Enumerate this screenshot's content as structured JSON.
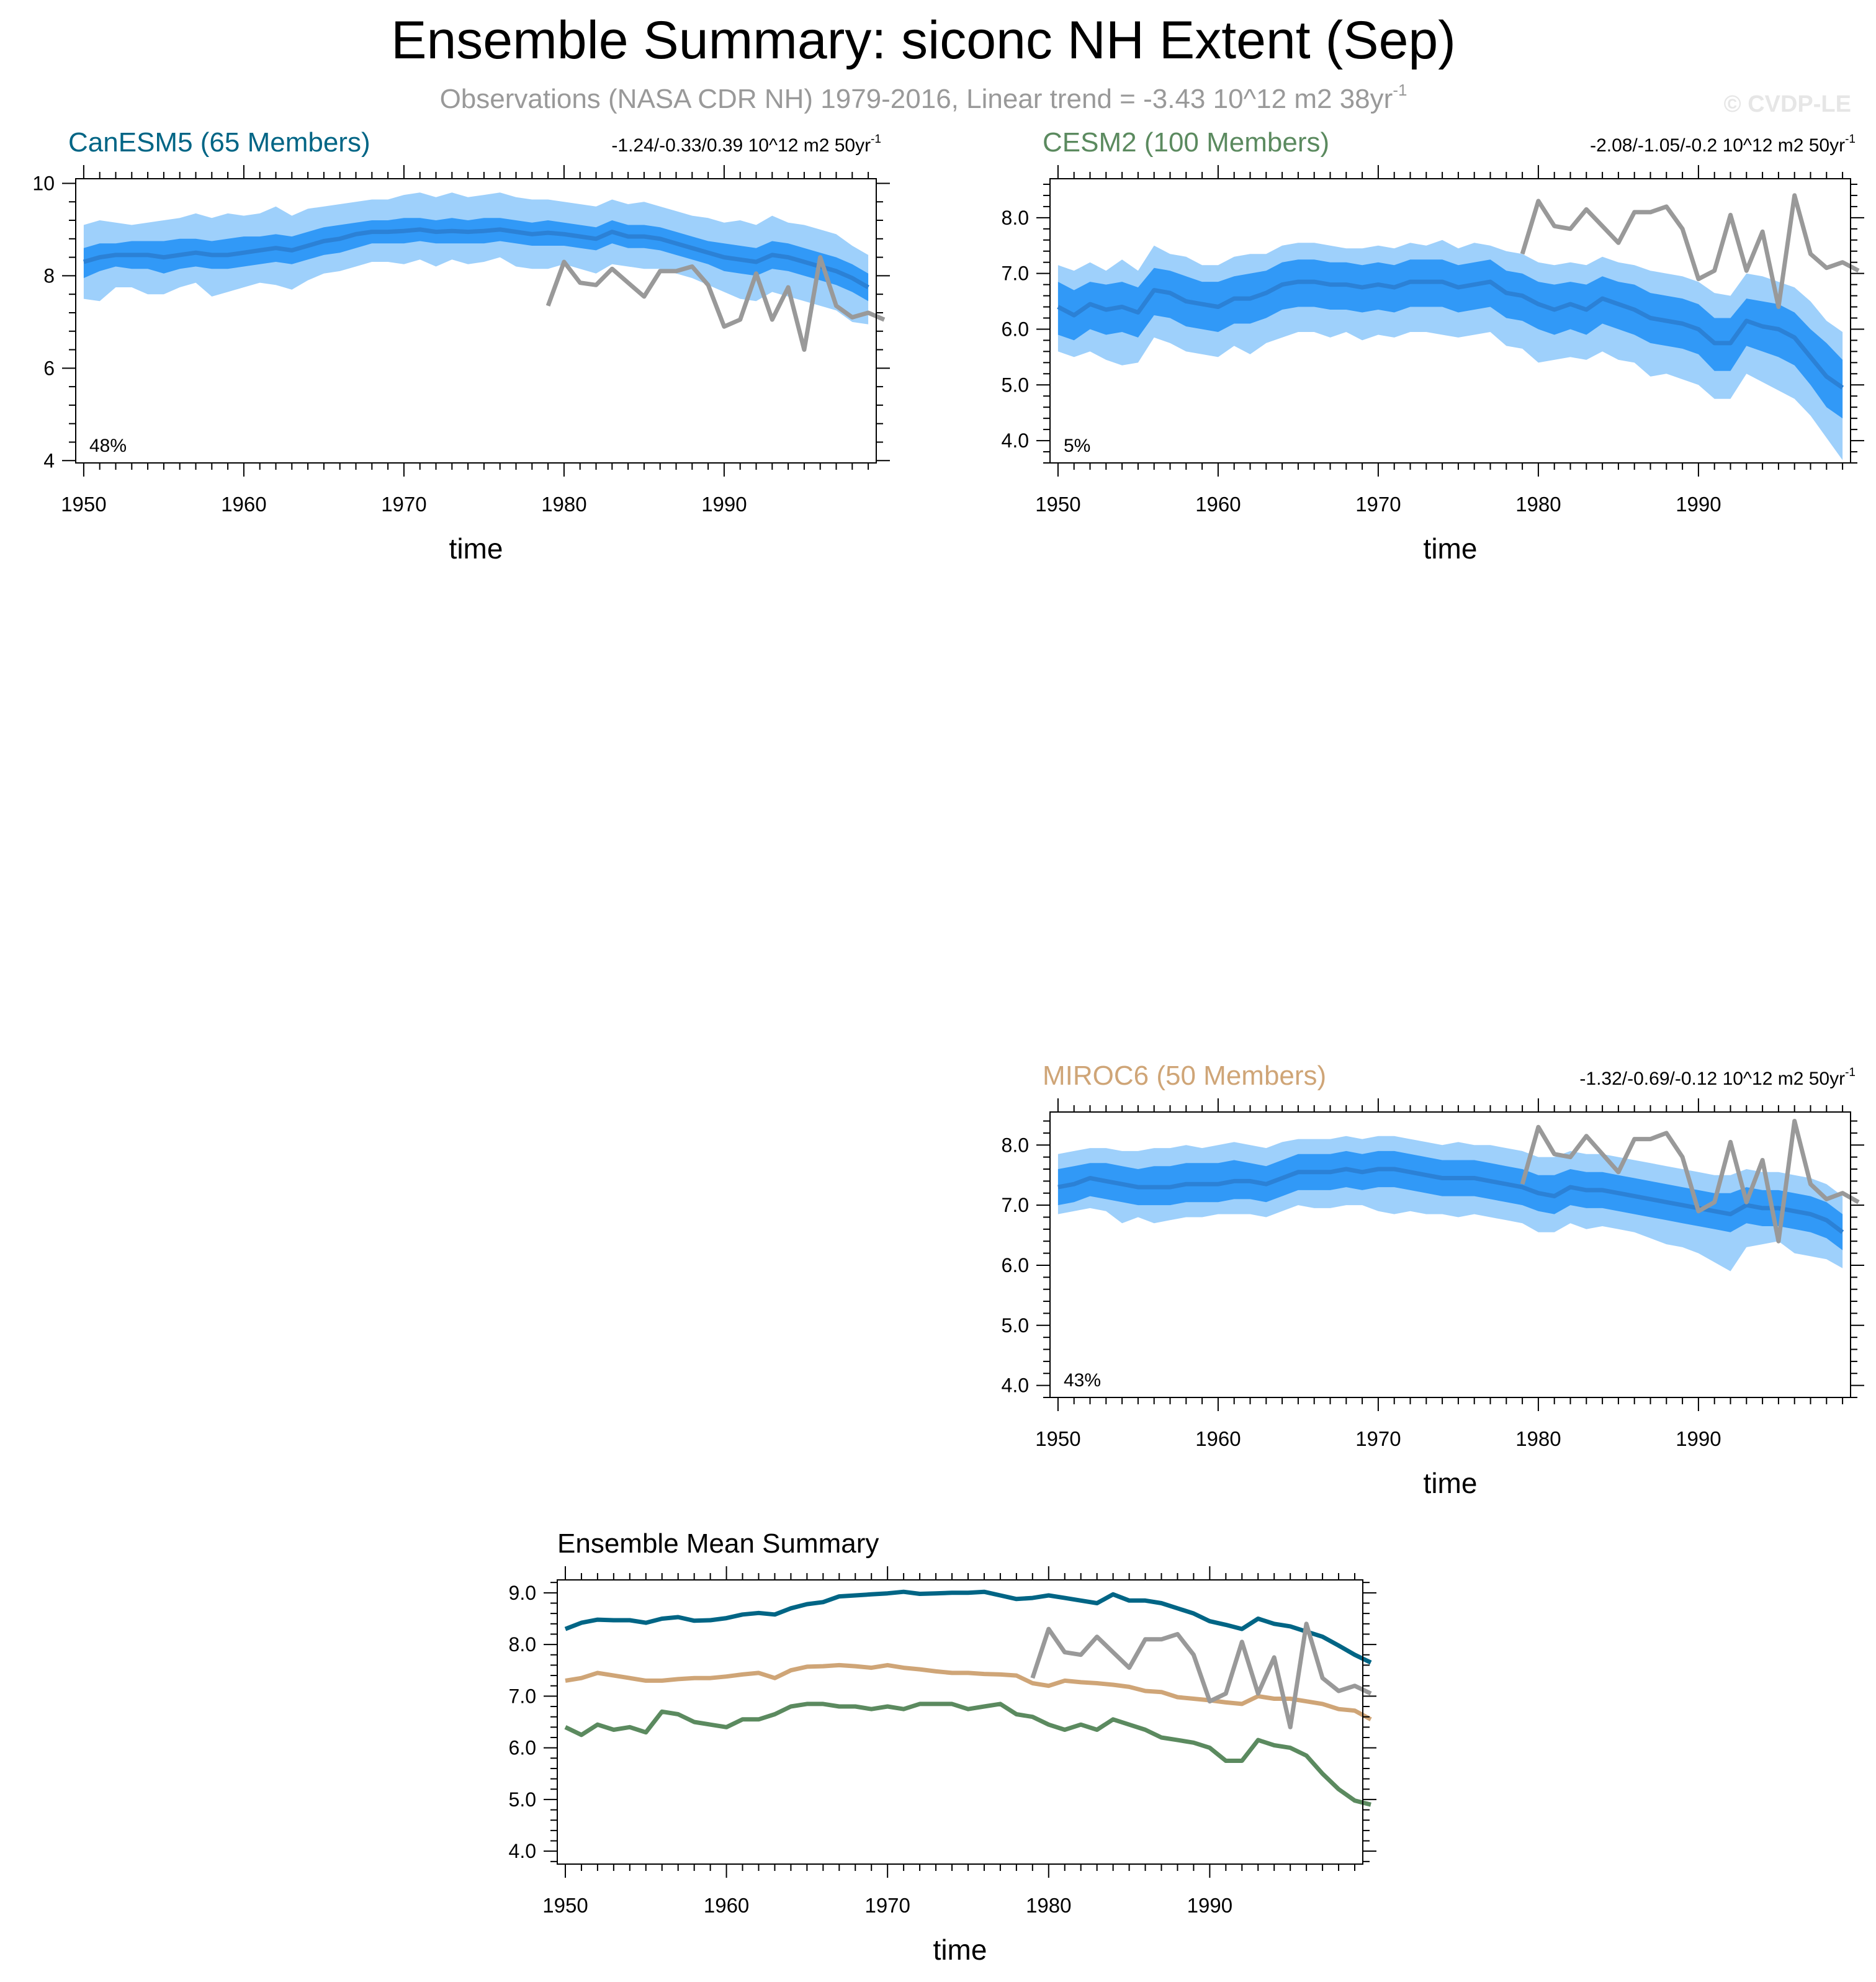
{
  "header": {
    "title": "Ensemble Summary: siconc NH Extent (Sep)",
    "subtitle": "Observations (NASA CDR NH) 1979-2016, Linear trend = -3.43 10^12 m2 38yr",
    "subtitle_sup": "-1",
    "watermark": "© CVDP-LE"
  },
  "colors": {
    "canesm5": "#006585",
    "cesm2": "#5b8a5f",
    "miroc6": "#cfa577",
    "band_outer": "#9ed0fb",
    "band_inner": "#3199f7",
    "mean_line": "#2b81d6",
    "obs": "#999999"
  },
  "chart_data": [
    {
      "id": "canesm5",
      "type": "area",
      "title": "CanESM5 (65 Members)",
      "trend_text": "-1.24/-0.33/0.39 10^12 m2 50yr",
      "trend_sup": "-1",
      "percent_label": "48%",
      "xlabel": "time",
      "xlim": [
        1949.5,
        1999.5
      ],
      "ylim": [
        3.95,
        10.1
      ],
      "xticks": [
        1950,
        1960,
        1970,
        1980,
        1990
      ],
      "yticks": [
        "4",
        "6",
        "8",
        "10"
      ],
      "x_start": 1950,
      "mean": [
        8.3,
        8.4,
        8.45,
        8.45,
        8.45,
        8.4,
        8.45,
        8.5,
        8.45,
        8.45,
        8.5,
        8.55,
        8.6,
        8.55,
        8.65,
        8.75,
        8.8,
        8.9,
        8.95,
        8.95,
        8.97,
        9.0,
        8.95,
        8.97,
        8.95,
        8.97,
        9.0,
        8.95,
        8.9,
        8.93,
        8.9,
        8.85,
        8.8,
        8.95,
        8.85,
        8.85,
        8.8,
        8.7,
        8.6,
        8.5,
        8.4,
        8.35,
        8.3,
        8.45,
        8.4,
        8.3,
        8.2,
        8.1,
        7.95,
        7.75
      ],
      "inner_upper": [
        8.6,
        8.7,
        8.7,
        8.75,
        8.75,
        8.75,
        8.8,
        8.8,
        8.75,
        8.8,
        8.85,
        8.85,
        8.9,
        8.85,
        8.95,
        9.05,
        9.1,
        9.15,
        9.2,
        9.2,
        9.25,
        9.25,
        9.2,
        9.25,
        9.2,
        9.25,
        9.25,
        9.2,
        9.15,
        9.2,
        9.15,
        9.1,
        9.05,
        9.2,
        9.1,
        9.1,
        9.05,
        8.95,
        8.85,
        8.75,
        8.7,
        8.65,
        8.6,
        8.75,
        8.7,
        8.6,
        8.5,
        8.4,
        8.25,
        8.05
      ],
      "inner_lower": [
        7.95,
        8.1,
        8.2,
        8.15,
        8.15,
        8.05,
        8.15,
        8.2,
        8.15,
        8.15,
        8.2,
        8.25,
        8.3,
        8.25,
        8.35,
        8.45,
        8.5,
        8.6,
        8.7,
        8.7,
        8.7,
        8.75,
        8.7,
        8.7,
        8.7,
        8.7,
        8.75,
        8.7,
        8.65,
        8.65,
        8.65,
        8.6,
        8.55,
        8.7,
        8.6,
        8.6,
        8.55,
        8.45,
        8.35,
        8.25,
        8.1,
        8.05,
        8.0,
        8.15,
        8.1,
        8.0,
        7.9,
        7.8,
        7.65,
        7.45
      ],
      "outer_upper": [
        9.1,
        9.2,
        9.15,
        9.1,
        9.15,
        9.2,
        9.25,
        9.35,
        9.25,
        9.35,
        9.3,
        9.35,
        9.5,
        9.3,
        9.45,
        9.5,
        9.55,
        9.6,
        9.65,
        9.65,
        9.75,
        9.8,
        9.7,
        9.8,
        9.7,
        9.75,
        9.8,
        9.7,
        9.65,
        9.65,
        9.6,
        9.55,
        9.5,
        9.65,
        9.55,
        9.6,
        9.5,
        9.4,
        9.3,
        9.25,
        9.15,
        9.2,
        9.1,
        9.3,
        9.15,
        9.1,
        9.0,
        8.9,
        8.65,
        8.45
      ],
      "outer_lower": [
        7.5,
        7.45,
        7.75,
        7.75,
        7.6,
        7.6,
        7.75,
        7.85,
        7.55,
        7.65,
        7.75,
        7.85,
        7.8,
        7.7,
        7.9,
        8.05,
        8.1,
        8.2,
        8.3,
        8.3,
        8.25,
        8.35,
        8.2,
        8.35,
        8.25,
        8.3,
        8.4,
        8.2,
        8.15,
        8.15,
        8.25,
        8.15,
        8.05,
        8.25,
        8.2,
        8.15,
        8.15,
        8.05,
        7.95,
        7.8,
        7.65,
        7.5,
        7.45,
        7.65,
        7.55,
        7.45,
        7.35,
        7.25,
        7.0,
        6.95
      ],
      "obs": {
        "x_start": 1979,
        "values": [
          7.35,
          8.3,
          7.85,
          7.8,
          8.15,
          7.85,
          7.55,
          8.1,
          8.1,
          8.2,
          7.8,
          6.9,
          7.05,
          8.05,
          7.05,
          7.75,
          6.4,
          8.4,
          7.35,
          7.1,
          7.2,
          7.05
        ]
      }
    },
    {
      "id": "cesm2",
      "type": "area",
      "title": "CESM2 (100 Members)",
      "trend_text": "-2.08/-1.05/-0.2 10^12 m2 50yr",
      "trend_sup": "-1",
      "percent_label": "5%",
      "xlabel": "time",
      "xlim": [
        1949.5,
        1999.5
      ],
      "ylim": [
        3.6,
        8.7
      ],
      "xticks": [
        1950,
        1960,
        1970,
        1980,
        1990
      ],
      "yticks": [
        "4.0",
        "5.0",
        "6.0",
        "7.0",
        "8.0"
      ],
      "x_start": 1950,
      "mean": [
        6.4,
        6.25,
        6.45,
        6.35,
        6.4,
        6.3,
        6.7,
        6.65,
        6.5,
        6.45,
        6.4,
        6.55,
        6.55,
        6.65,
        6.8,
        6.85,
        6.85,
        6.8,
        6.8,
        6.75,
        6.8,
        6.75,
        6.85,
        6.85,
        6.85,
        6.75,
        6.8,
        6.85,
        6.65,
        6.6,
        6.45,
        6.35,
        6.45,
        6.35,
        6.55,
        6.45,
        6.35,
        6.2,
        6.15,
        6.1,
        6.0,
        5.75,
        5.75,
        6.15,
        6.05,
        6.0,
        5.85,
        5.5,
        5.15,
        4.95
      ],
      "inner_upper": [
        6.85,
        6.7,
        6.85,
        6.8,
        6.85,
        6.75,
        7.1,
        7.05,
        6.95,
        6.85,
        6.85,
        6.95,
        7.0,
        7.05,
        7.2,
        7.25,
        7.25,
        7.2,
        7.2,
        7.15,
        7.2,
        7.15,
        7.25,
        7.25,
        7.25,
        7.15,
        7.2,
        7.25,
        7.05,
        7.0,
        6.85,
        6.8,
        6.85,
        6.8,
        6.95,
        6.85,
        6.8,
        6.65,
        6.6,
        6.55,
        6.45,
        6.2,
        6.2,
        6.55,
        6.5,
        6.45,
        6.3,
        6.0,
        5.75,
        5.45
      ],
      "inner_lower": [
        5.9,
        5.8,
        6.0,
        5.9,
        5.95,
        5.85,
        6.25,
        6.2,
        6.05,
        6.0,
        5.95,
        6.1,
        6.1,
        6.2,
        6.35,
        6.4,
        6.4,
        6.35,
        6.35,
        6.3,
        6.35,
        6.3,
        6.4,
        6.4,
        6.4,
        6.3,
        6.35,
        6.4,
        6.2,
        6.15,
        6.0,
        5.9,
        6.0,
        5.9,
        6.1,
        6.0,
        5.9,
        5.75,
        5.7,
        5.65,
        5.55,
        5.25,
        5.25,
        5.7,
        5.6,
        5.5,
        5.35,
        5.0,
        4.6,
        4.4
      ],
      "outer_upper": [
        7.15,
        7.05,
        7.2,
        7.05,
        7.25,
        7.05,
        7.5,
        7.35,
        7.3,
        7.15,
        7.15,
        7.3,
        7.35,
        7.35,
        7.5,
        7.55,
        7.55,
        7.5,
        7.45,
        7.45,
        7.5,
        7.45,
        7.55,
        7.5,
        7.6,
        7.45,
        7.55,
        7.5,
        7.4,
        7.35,
        7.2,
        7.15,
        7.2,
        7.15,
        7.3,
        7.2,
        7.15,
        7.05,
        7.0,
        6.95,
        6.85,
        6.65,
        6.6,
        7.0,
        6.95,
        6.85,
        6.75,
        6.5,
        6.15,
        5.95
      ],
      "outer_lower": [
        5.6,
        5.5,
        5.6,
        5.45,
        5.35,
        5.4,
        5.85,
        5.75,
        5.6,
        5.55,
        5.5,
        5.7,
        5.55,
        5.75,
        5.85,
        5.95,
        5.95,
        5.85,
        5.95,
        5.8,
        5.9,
        5.85,
        5.95,
        5.95,
        5.9,
        5.85,
        5.9,
        5.95,
        5.7,
        5.65,
        5.4,
        5.45,
        5.5,
        5.45,
        5.6,
        5.45,
        5.4,
        5.15,
        5.2,
        5.1,
        5.0,
        4.75,
        4.75,
        5.2,
        5.05,
        4.9,
        4.75,
        4.45,
        4.05,
        3.65
      ],
      "obs": {
        "x_start": 1979,
        "values": [
          7.35,
          8.3,
          7.85,
          7.8,
          8.15,
          7.85,
          7.55,
          8.1,
          8.1,
          8.2,
          7.8,
          6.9,
          7.05,
          8.05,
          7.05,
          7.75,
          6.4,
          8.4,
          7.35,
          7.1,
          7.2,
          7.05
        ]
      }
    },
    {
      "id": "miroc6",
      "type": "area",
      "title": "MIROC6 (50 Members)",
      "trend_text": "-1.32/-0.69/-0.12 10^12 m2 50yr",
      "trend_sup": "-1",
      "percent_label": "43%",
      "xlabel": "time",
      "xlim": [
        1949.5,
        1999.5
      ],
      "ylim": [
        3.8,
        8.55
      ],
      "xticks": [
        1950,
        1960,
        1970,
        1980,
        1990
      ],
      "yticks": [
        "4.0",
        "5.0",
        "6.0",
        "7.0",
        "8.0"
      ],
      "x_start": 1950,
      "mean": [
        7.3,
        7.35,
        7.45,
        7.4,
        7.35,
        7.3,
        7.3,
        7.3,
        7.35,
        7.35,
        7.35,
        7.4,
        7.4,
        7.35,
        7.45,
        7.55,
        7.55,
        7.55,
        7.6,
        7.55,
        7.6,
        7.6,
        7.55,
        7.5,
        7.45,
        7.45,
        7.45,
        7.4,
        7.35,
        7.3,
        7.2,
        7.15,
        7.3,
        7.25,
        7.25,
        7.2,
        7.15,
        7.1,
        7.05,
        7.0,
        6.95,
        6.9,
        6.85,
        7.0,
        6.95,
        6.95,
        6.9,
        6.85,
        6.75,
        6.55
      ],
      "inner_upper": [
        7.6,
        7.65,
        7.7,
        7.7,
        7.65,
        7.6,
        7.65,
        7.65,
        7.7,
        7.7,
        7.7,
        7.75,
        7.7,
        7.65,
        7.75,
        7.85,
        7.85,
        7.85,
        7.9,
        7.85,
        7.9,
        7.9,
        7.85,
        7.8,
        7.75,
        7.75,
        7.75,
        7.7,
        7.65,
        7.6,
        7.5,
        7.5,
        7.6,
        7.55,
        7.55,
        7.5,
        7.45,
        7.4,
        7.35,
        7.3,
        7.25,
        7.2,
        7.2,
        7.3,
        7.25,
        7.25,
        7.2,
        7.15,
        7.05,
        6.85
      ],
      "inner_lower": [
        7.0,
        7.05,
        7.15,
        7.1,
        7.05,
        7.0,
        7.0,
        7.0,
        7.05,
        7.05,
        7.05,
        7.1,
        7.1,
        7.05,
        7.15,
        7.25,
        7.25,
        7.25,
        7.3,
        7.25,
        7.3,
        7.3,
        7.25,
        7.2,
        7.15,
        7.15,
        7.15,
        7.1,
        7.05,
        7.0,
        6.9,
        6.85,
        7.0,
        6.95,
        6.95,
        6.9,
        6.85,
        6.8,
        6.75,
        6.7,
        6.65,
        6.6,
        6.55,
        6.7,
        6.65,
        6.65,
        6.6,
        6.55,
        6.45,
        6.25
      ],
      "outer_upper": [
        7.85,
        7.9,
        7.95,
        7.95,
        7.9,
        7.9,
        7.95,
        7.95,
        8.0,
        7.95,
        8.0,
        8.05,
        8.0,
        7.95,
        8.05,
        8.1,
        8.1,
        8.1,
        8.15,
        8.1,
        8.15,
        8.15,
        8.1,
        8.05,
        8.0,
        8.05,
        8.0,
        8.0,
        7.95,
        7.9,
        7.8,
        7.8,
        7.9,
        7.85,
        7.85,
        7.8,
        7.75,
        7.7,
        7.65,
        7.6,
        7.55,
        7.5,
        7.5,
        7.6,
        7.55,
        7.55,
        7.5,
        7.45,
        7.35,
        7.15
      ],
      "outer_lower": [
        6.85,
        6.9,
        6.95,
        6.9,
        6.7,
        6.8,
        6.7,
        6.75,
        6.8,
        6.8,
        6.85,
        6.85,
        6.85,
        6.8,
        6.9,
        7.0,
        6.95,
        6.95,
        7.0,
        7.0,
        6.9,
        6.85,
        6.9,
        6.85,
        6.85,
        6.8,
        6.85,
        6.8,
        6.75,
        6.7,
        6.55,
        6.55,
        6.7,
        6.6,
        6.65,
        6.6,
        6.55,
        6.45,
        6.35,
        6.3,
        6.2,
        6.05,
        5.9,
        6.3,
        6.35,
        6.4,
        6.2,
        6.15,
        6.1,
        5.95
      ],
      "obs": {
        "x_start": 1979,
        "values": [
          7.35,
          8.3,
          7.85,
          7.8,
          8.15,
          7.85,
          7.55,
          8.1,
          8.1,
          8.2,
          7.8,
          6.9,
          7.05,
          8.05,
          7.05,
          7.75,
          6.4,
          8.4,
          7.35,
          7.1,
          7.2,
          7.05
        ]
      }
    },
    {
      "id": "ensemble_mean",
      "type": "line",
      "title": "Ensemble Mean Summary",
      "xlabel": "time",
      "xlim": [
        1949.5,
        1999.5
      ],
      "ylim": [
        3.75,
        9.25
      ],
      "xticks": [
        1950,
        1960,
        1970,
        1980,
        1990
      ],
      "yticks": [
        "4.0",
        "5.0",
        "6.0",
        "7.0",
        "8.0",
        "9.0"
      ],
      "x_start": 1950,
      "series": [
        {
          "name": "CanESM5",
          "color": "#006585",
          "values": [
            8.3,
            8.42,
            8.48,
            8.47,
            8.47,
            8.42,
            8.5,
            8.53,
            8.46,
            8.47,
            8.51,
            8.58,
            8.61,
            8.58,
            8.7,
            8.78,
            8.82,
            8.93,
            8.95,
            8.97,
            8.99,
            9.02,
            8.98,
            8.99,
            9.0,
            9.0,
            9.02,
            8.95,
            8.88,
            8.9,
            8.95,
            8.9,
            8.85,
            8.8,
            8.97,
            8.85,
            8.85,
            8.8,
            8.7,
            8.6,
            8.45,
            8.38,
            8.3,
            8.5,
            8.4,
            8.35,
            8.25,
            8.15,
            7.98,
            7.8,
            7.65
          ]
        },
        {
          "name": "CESM2",
          "color": "#5b8a5f",
          "values": [
            6.4,
            6.25,
            6.45,
            6.35,
            6.4,
            6.3,
            6.7,
            6.65,
            6.5,
            6.45,
            6.4,
            6.55,
            6.55,
            6.65,
            6.8,
            6.85,
            6.85,
            6.8,
            6.8,
            6.75,
            6.8,
            6.75,
            6.85,
            6.85,
            6.85,
            6.75,
            6.8,
            6.85,
            6.65,
            6.6,
            6.45,
            6.35,
            6.45,
            6.35,
            6.55,
            6.45,
            6.35,
            6.2,
            6.15,
            6.1,
            6.0,
            5.75,
            5.75,
            6.15,
            6.05,
            6.0,
            5.85,
            5.5,
            5.2,
            4.98,
            4.9
          ]
        },
        {
          "name": "MIROC6",
          "color": "#cfa577",
          "values": [
            7.3,
            7.35,
            7.45,
            7.4,
            7.35,
            7.3,
            7.3,
            7.33,
            7.35,
            7.35,
            7.38,
            7.42,
            7.45,
            7.35,
            7.5,
            7.57,
            7.58,
            7.6,
            7.58,
            7.55,
            7.6,
            7.55,
            7.52,
            7.48,
            7.45,
            7.45,
            7.43,
            7.42,
            7.4,
            7.25,
            7.2,
            7.3,
            7.27,
            7.25,
            7.22,
            7.18,
            7.1,
            7.08,
            6.98,
            6.95,
            6.92,
            6.88,
            6.85,
            7.0,
            6.95,
            6.95,
            6.9,
            6.85,
            6.75,
            6.72,
            6.55
          ]
        }
      ],
      "obs": {
        "x_start": 1979,
        "values": [
          7.35,
          8.3,
          7.85,
          7.8,
          8.15,
          7.85,
          7.55,
          8.1,
          8.1,
          8.2,
          7.8,
          6.9,
          7.05,
          8.05,
          7.05,
          7.75,
          6.4,
          8.4,
          7.35,
          7.1,
          7.2,
          7.05
        ]
      }
    }
  ]
}
